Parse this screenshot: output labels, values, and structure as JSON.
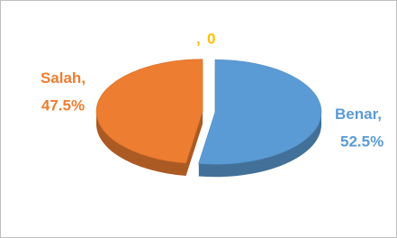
{
  "chart_data": {
    "type": "pie",
    "categories": [
      "Benar",
      "Salah",
      null
    ],
    "values": [
      52.5,
      47.5,
      0
    ],
    "value_labels": [
      "52.5%",
      "47.5%",
      "0"
    ],
    "label_separator": ",",
    "colors": [
      "#5b9bd5",
      "#ed7d31",
      "#ffc000"
    ],
    "style": "3d",
    "exploded": true
  }
}
